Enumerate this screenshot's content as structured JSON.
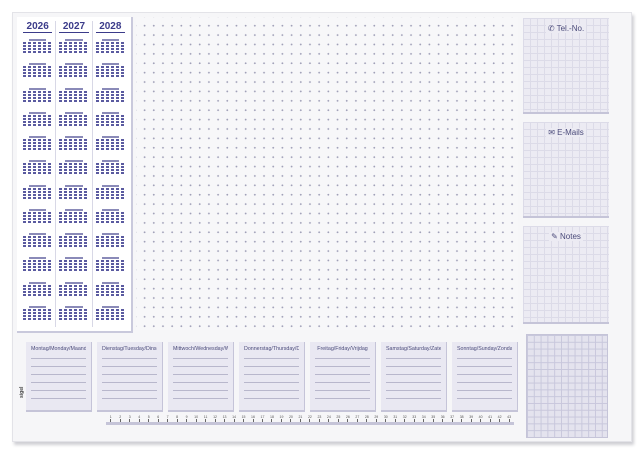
{
  "calendar": {
    "years": [
      "2026",
      "2027",
      "2028"
    ]
  },
  "right_panel": [
    {
      "label": "Tel.-No.",
      "icon": "phone-icon"
    },
    {
      "label": "E-Mails",
      "icon": "envelope-icon"
    },
    {
      "label": "Notes",
      "icon": "pencil-icon"
    }
  ],
  "weekdays": [
    "Montag/Monday/Maandag",
    "Dienstag/Tuesday/Dinsdag",
    "Mittwoch/Wednesday/Woensdag",
    "Donnerstag/Thursday/Donderdag",
    "Freitag/Friday/Vrijdag",
    "Samstag/Saturday/Zaterdag",
    "Sonntag/Sunday/Zondag"
  ],
  "ruler": {
    "start": 1,
    "end": 43
  },
  "brand": "sigel",
  "colors": {
    "accent": "#3b3b8a",
    "panel": "#e9e8f2"
  }
}
